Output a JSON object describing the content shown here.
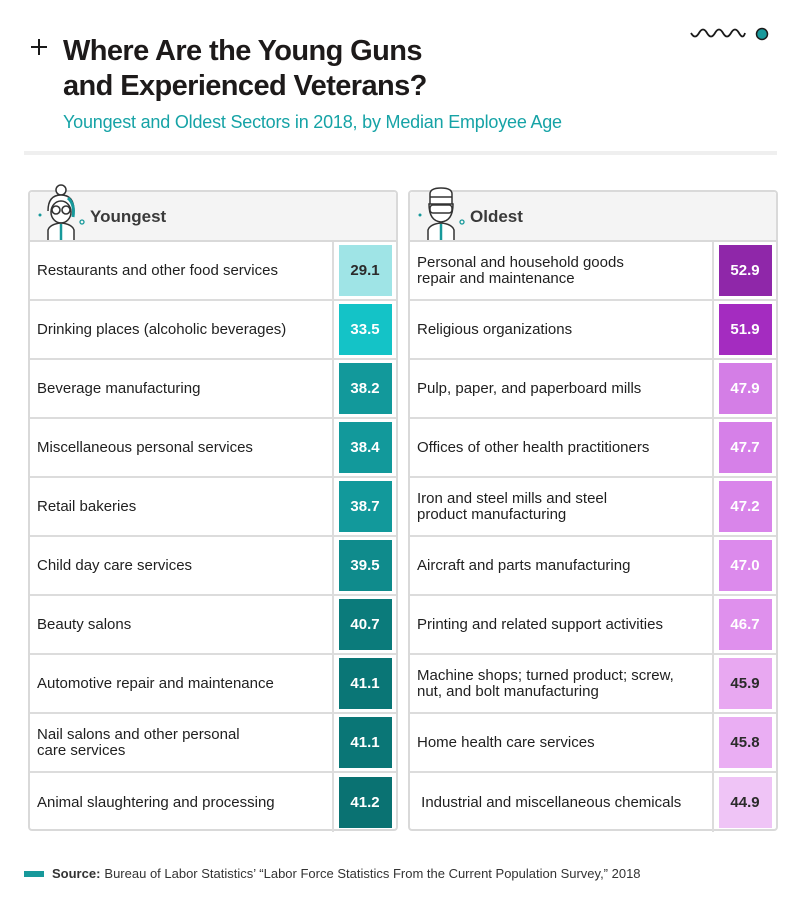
{
  "header": {
    "title_line1": "Where Are the Young Guns",
    "title_line2": "and Experienced Veterans?",
    "subtitle": "Youngest and Oldest Sectors in 2018, by Median Employee Age"
  },
  "colors": {
    "accent": "#16a3a6",
    "young_scale": [
      "#9fe4e6",
      "#14c3c7",
      "#12999b",
      "#12999b",
      "#12999b",
      "#0f8b8c",
      "#0b7b7b",
      "#0a7676",
      "#0a7676",
      "#0a7272"
    ],
    "old_scale": [
      "#8f27a9",
      "#a42cc0",
      "#d47ee6",
      "#d680e8",
      "#d985ea",
      "#dc8aec",
      "#df90ed",
      "#e8a8f1",
      "#eaaef3",
      "#efc4f6"
    ]
  },
  "chart_data": {
    "type": "table",
    "title": "Where Are the Young Guns and Experienced Veterans?",
    "subtitle": "Youngest and Oldest Sectors in 2018, by Median Employee Age",
    "unit": "median employee age (years)",
    "tables": [
      {
        "name": "Youngest",
        "rows": [
          {
            "sector": "Restaurants and other food services",
            "value": 29.1
          },
          {
            "sector": "Drinking places (alcoholic beverages)",
            "value": 33.5
          },
          {
            "sector": "Beverage manufacturing",
            "value": 38.2
          },
          {
            "sector": "Miscellaneous personal services",
            "value": 38.4
          },
          {
            "sector": "Retail bakeries",
            "value": 38.7
          },
          {
            "sector": "Child day care services",
            "value": 39.5
          },
          {
            "sector": "Beauty salons",
            "value": 40.7
          },
          {
            "sector": "Automotive repair and maintenance",
            "value": 41.1
          },
          {
            "sector": "Nail salons and other personal care services",
            "value": 41.1
          },
          {
            "sector": "Animal slaughtering and processing",
            "value": 41.2
          }
        ]
      },
      {
        "name": "Oldest",
        "rows": [
          {
            "sector": "Personal and household goods repair and maintenance",
            "value": 52.9
          },
          {
            "sector": "Religious organizations",
            "value": 51.9
          },
          {
            "sector": "Pulp, paper, and paperboard mills",
            "value": 47.9
          },
          {
            "sector": "Offices of other health practitioners",
            "value": 47.7
          },
          {
            "sector": "Iron and steel mills and steel product manufacturing",
            "value": 47.2
          },
          {
            "sector": "Aircraft and parts manufacturing",
            "value": 47.0
          },
          {
            "sector": "Printing and related support activities",
            "value": 46.7
          },
          {
            "sector": "Machine shops; turned product; screw, nut, and bolt manufacturing",
            "value": 45.9
          },
          {
            "sector": "Home health care services",
            "value": 45.8
          },
          {
            "sector": "Industrial and miscellaneous chemicals",
            "value": 44.9
          }
        ]
      }
    ]
  },
  "display_names": {
    "young": [
      [
        "Restaurants and other food services"
      ],
      [
        "Drinking places (alcoholic beverages)"
      ],
      [
        "Beverage manufacturing"
      ],
      [
        "Miscellaneous personal services"
      ],
      [
        "Retail bakeries"
      ],
      [
        "Child day care services"
      ],
      [
        "Beauty salons"
      ],
      [
        "Automotive repair and maintenance"
      ],
      [
        "Nail salons and other personal",
        "care services"
      ],
      [
        "Animal slaughtering and processing"
      ]
    ],
    "old": [
      [
        "Personal and household goods",
        "repair and maintenance"
      ],
      [
        "Religious organizations"
      ],
      [
        "Pulp, paper, and paperboard mills"
      ],
      [
        "Offices of other health practitioners"
      ],
      [
        "Iron and steel mills and steel",
        "product manufacturing"
      ],
      [
        "Aircraft and parts manufacturing"
      ],
      [
        "Printing and related support activities"
      ],
      [
        "Machine shops; turned product; screw,",
        "nut, and bolt manufacturing"
      ],
      [
        "Home health care services"
      ],
      [
        " Industrial and miscellaneous chemicals"
      ]
    ]
  },
  "value_text_dark": {
    "young": [
      true,
      false,
      false,
      false,
      false,
      false,
      false,
      false,
      false,
      false
    ],
    "old": [
      false,
      false,
      false,
      false,
      false,
      false,
      false,
      true,
      true,
      true
    ]
  },
  "source": {
    "label": "Source:",
    "text": "Bureau of Labor Statistics’ “Labor Force Statistics From the Current Population Survey,” 2018"
  },
  "icons": {
    "header_left": "plus-icon",
    "header_right": "squiggle-dot-icon",
    "young_avatar": "young-woman-avatar-icon",
    "old_avatar": "older-man-avatar-icon"
  }
}
